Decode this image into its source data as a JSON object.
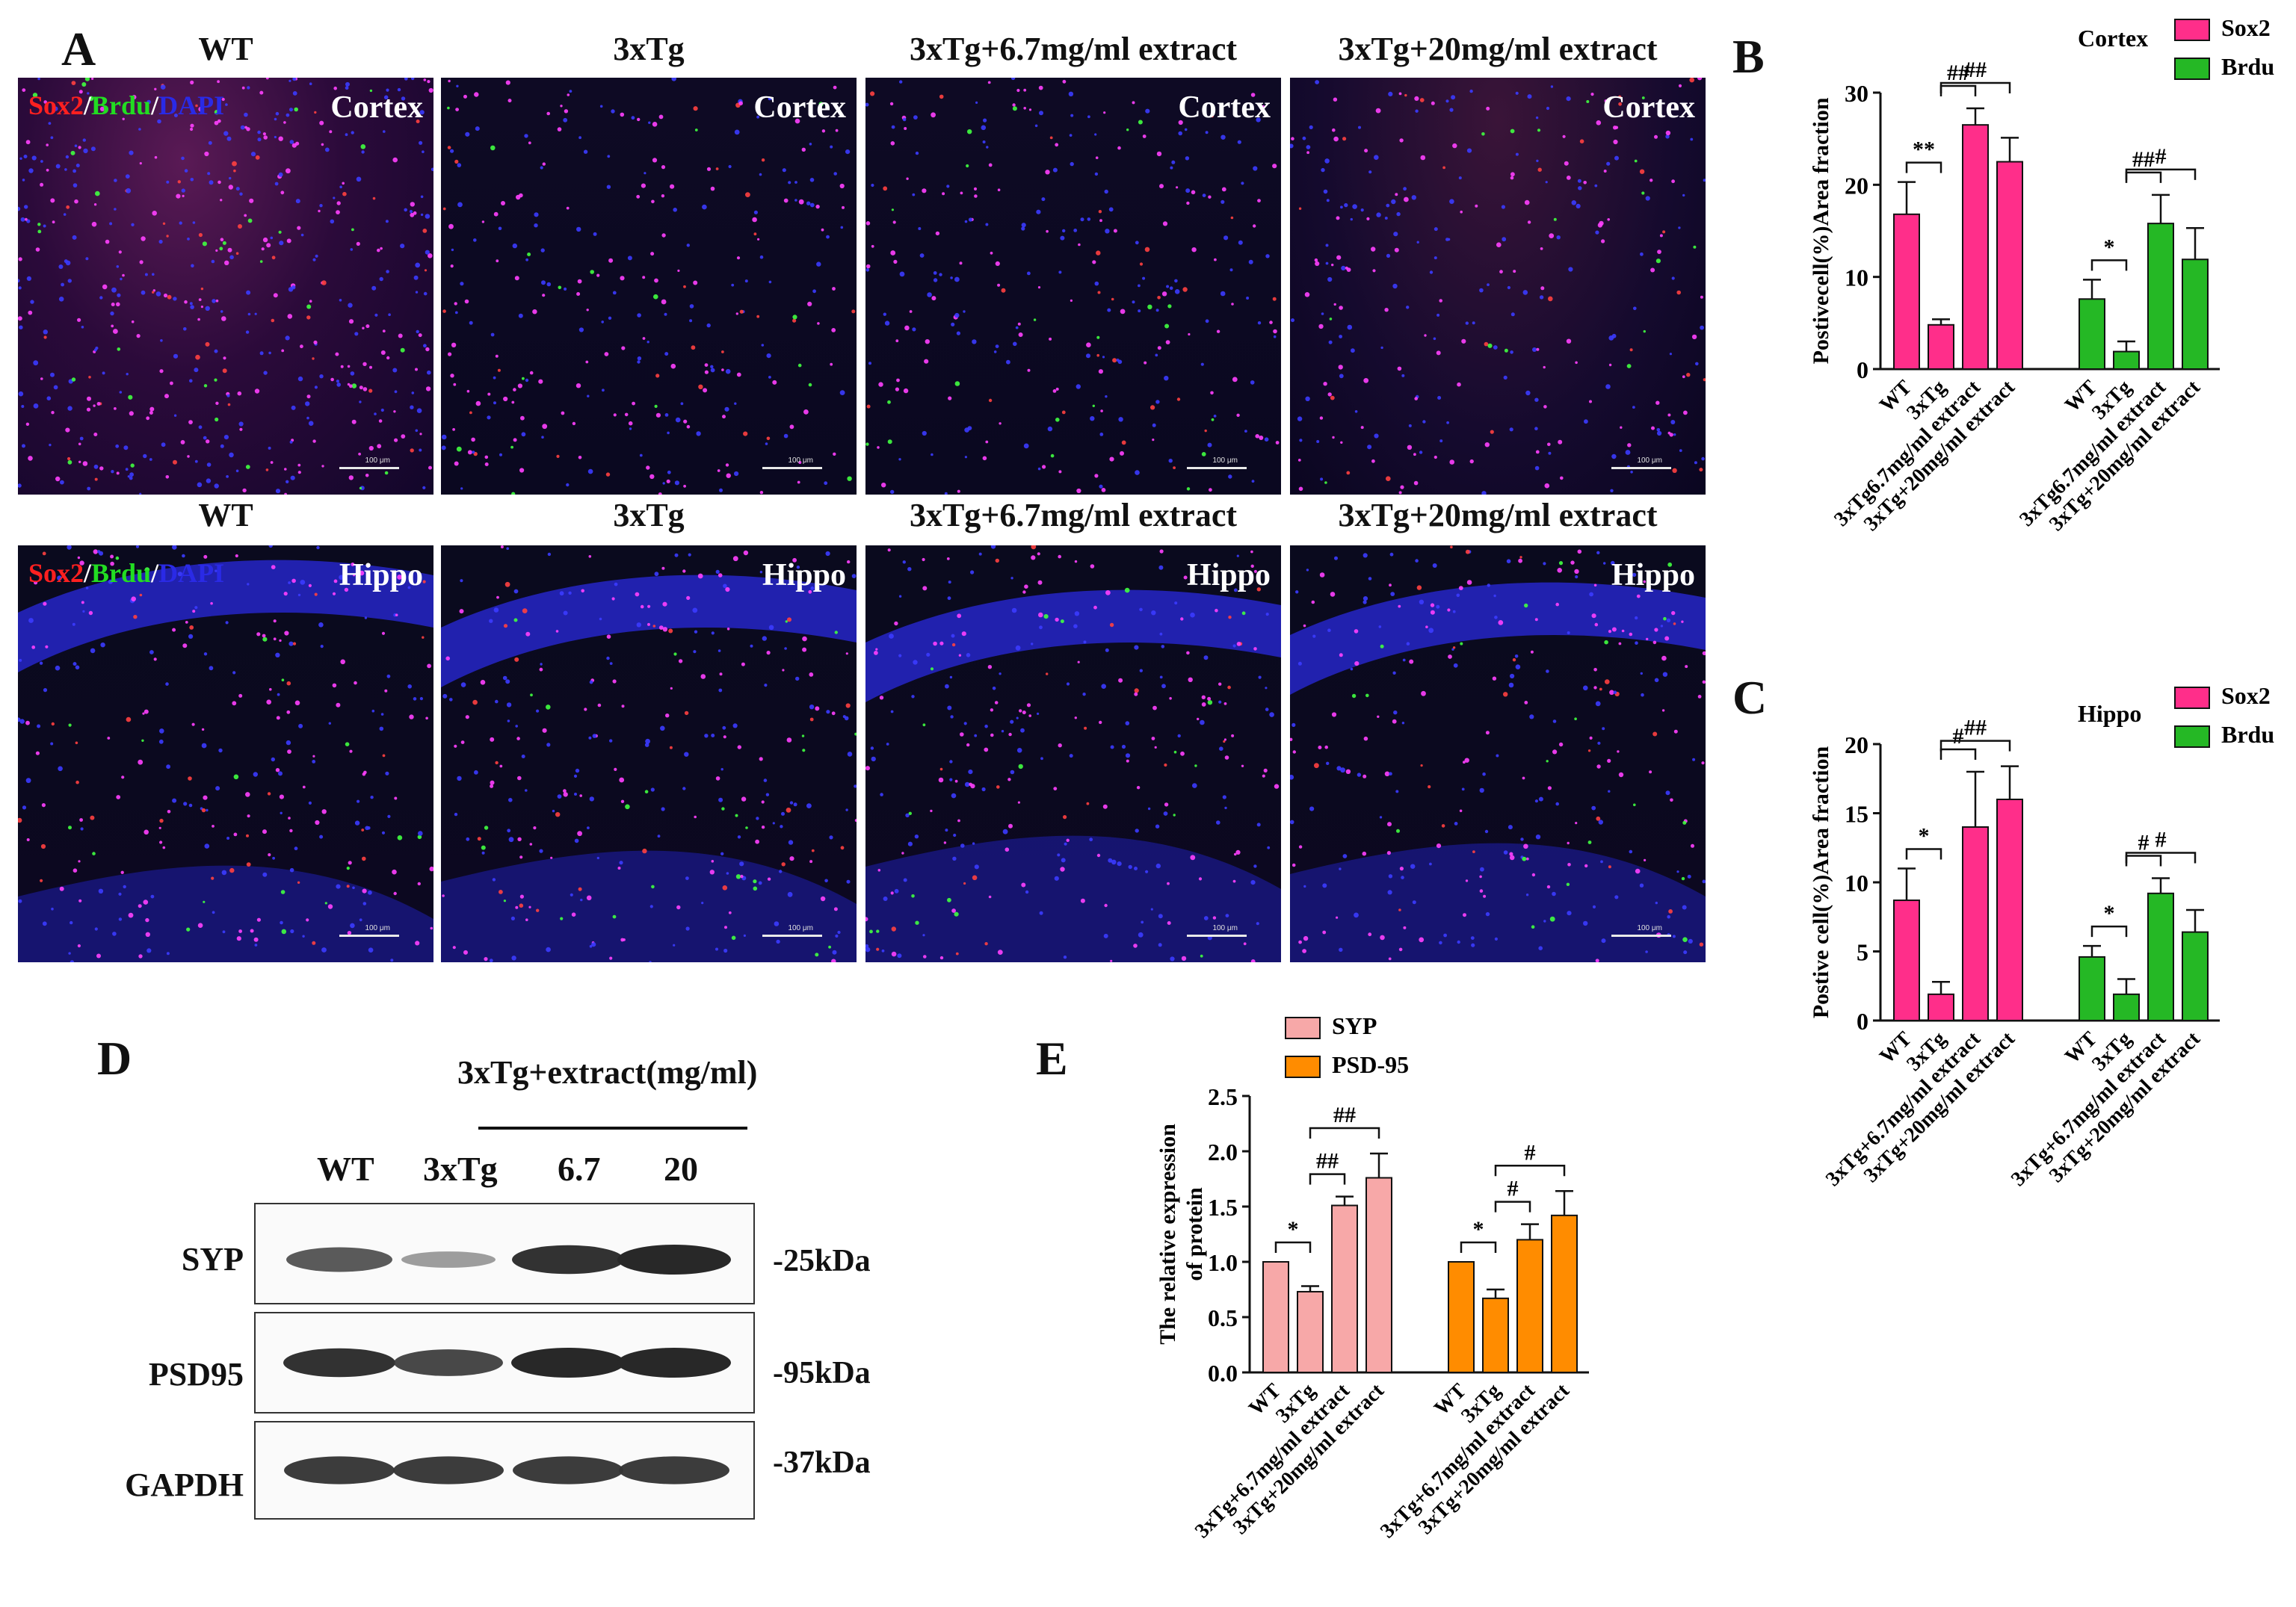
{
  "panels": {
    "A": "A",
    "B": "B",
    "C": "C",
    "D": "D",
    "E": "E"
  },
  "panel_a": {
    "columns": [
      "WT",
      "3xTg",
      "3xTg+6.7mg/ml extract",
      "3xTg+20mg/ml extract"
    ],
    "stain": {
      "sox2": "Sox2",
      "sep1": "/",
      "brdu": "Brdu",
      "sep2": "/",
      "dapi": "DAPI"
    },
    "rows": [
      {
        "region": "Cortex",
        "scales": [
          "100 μm",
          "100 μm",
          "100 μm",
          "100 μm"
        ]
      },
      {
        "region": "Hippo",
        "scales": [
          "100 μm",
          "100 μm",
          "100 μm",
          "100 μm"
        ]
      }
    ],
    "colors": {
      "red": "#ff2020",
      "green": "#22dd22",
      "blue": "#2a2ae6",
      "nucleus": "#ff40ff"
    }
  },
  "panel_d": {
    "group_label": "3xTg+extract(mg/ml)",
    "lanes": [
      "WT",
      "3xTg",
      "6.7",
      "20"
    ],
    "bands": [
      {
        "name": "SYP",
        "kda": "-25kDa",
        "intensity": [
          0.75,
          0.35,
          0.95,
          1.0
        ]
      },
      {
        "name": "PSD95",
        "kda": "-95kDa",
        "intensity": [
          0.95,
          0.85,
          1.0,
          1.0
        ]
      },
      {
        "name": "GAPDH",
        "kda": "-37kDa",
        "intensity": [
          0.9,
          0.9,
          0.9,
          0.9
        ]
      }
    ]
  },
  "chart_data": [
    {
      "panel": "B",
      "type": "bar",
      "title": "Cortex",
      "ylabel": "Postivecell(%)Area fraction",
      "ylim": [
        0,
        30
      ],
      "yticks": [
        0,
        10,
        20,
        30
      ],
      "categories": [
        "WT",
        "3xTg",
        "3xTg6.7mg/ml extract",
        "3xTg+20mg/ml extract"
      ],
      "series": [
        {
          "name": "Sox2",
          "color": "#ff2e8a",
          "values": [
            16.8,
            4.8,
            26.5,
            22.5
          ],
          "errors": [
            3.5,
            0.6,
            1.8,
            2.6
          ]
        },
        {
          "name": "Brdu",
          "color": "#25b825",
          "values": [
            7.6,
            1.9,
            15.8,
            11.9
          ],
          "errors": [
            2.1,
            1.1,
            3.1,
            3.4
          ]
        }
      ],
      "annotations": [
        {
          "series": 0,
          "from": 0,
          "to": 1,
          "label": "**"
        },
        {
          "series": 0,
          "from": 1,
          "to": 2,
          "label": "##"
        },
        {
          "series": 0,
          "from": 1,
          "to": 3,
          "label": "##"
        },
        {
          "series": 1,
          "from": 0,
          "to": 1,
          "label": "*"
        },
        {
          "series": 1,
          "from": 1,
          "to": 2,
          "label": "##"
        },
        {
          "series": 1,
          "from": 1,
          "to": 3,
          "label": "#"
        }
      ],
      "legend_position": "top-right"
    },
    {
      "panel": "C",
      "type": "bar",
      "title": "Hippo",
      "ylabel": "Postive cell(%)Area fraction",
      "ylim": [
        0,
        20
      ],
      "yticks": [
        0,
        5,
        10,
        15,
        20
      ],
      "categories": [
        "WT",
        "3xTg",
        "3xTg+6.7mg/ml extract",
        "3xTg+20mg/ml extract"
      ],
      "series": [
        {
          "name": "Sox2",
          "color": "#ff2e8a",
          "values": [
            8.7,
            1.9,
            14.0,
            16.0
          ],
          "errors": [
            2.3,
            0.9,
            4.0,
            2.4
          ]
        },
        {
          "name": "Brdu",
          "color": "#25b825",
          "values": [
            4.6,
            1.9,
            9.2,
            6.4
          ],
          "errors": [
            0.8,
            1.1,
            1.1,
            1.6
          ]
        }
      ],
      "annotations": [
        {
          "series": 0,
          "from": 0,
          "to": 1,
          "label": "*"
        },
        {
          "series": 0,
          "from": 1,
          "to": 2,
          "label": "#"
        },
        {
          "series": 0,
          "from": 1,
          "to": 3,
          "label": "##"
        },
        {
          "series": 1,
          "from": 0,
          "to": 1,
          "label": "*"
        },
        {
          "series": 1,
          "from": 1,
          "to": 2,
          "label": "#"
        },
        {
          "series": 1,
          "from": 1,
          "to": 3,
          "label": "#"
        }
      ],
      "legend_position": "top-right"
    },
    {
      "panel": "E",
      "type": "bar",
      "title": "",
      "ylabel": "The relative expression of protein",
      "ylabel_lines": [
        "The relative expression",
        "of protein"
      ],
      "ylim": [
        0,
        2.5
      ],
      "yticks": [
        0.0,
        0.5,
        1.0,
        1.5,
        2.0,
        2.5
      ],
      "ytick_labels": [
        "0.0",
        "0.5",
        "1.0",
        "1.5",
        "2.0",
        "2.5"
      ],
      "categories": [
        "WT",
        "3xTg",
        "3xTg+6.7mg/ml extract",
        "3xTg+20mg/ml extract"
      ],
      "series": [
        {
          "name": "SYP",
          "color": "#f7a8a8",
          "values": [
            1.0,
            0.73,
            1.51,
            1.76
          ],
          "errors": [
            0.0,
            0.05,
            0.08,
            0.22
          ]
        },
        {
          "name": "PSD-95",
          "color": "#ff8c00",
          "values": [
            1.0,
            0.67,
            1.2,
            1.42
          ],
          "errors": [
            0.0,
            0.08,
            0.14,
            0.22
          ]
        }
      ],
      "annotations": [
        {
          "series": 0,
          "from": 0,
          "to": 1,
          "label": "*"
        },
        {
          "series": 0,
          "from": 1,
          "to": 2,
          "label": "##"
        },
        {
          "series": 0,
          "from": 1,
          "to": 3,
          "label": "##"
        },
        {
          "series": 1,
          "from": 0,
          "to": 1,
          "label": "*"
        },
        {
          "series": 1,
          "from": 1,
          "to": 2,
          "label": "#"
        },
        {
          "series": 1,
          "from": 1,
          "to": 3,
          "label": "#"
        }
      ],
      "legend_position": "top-left"
    }
  ]
}
